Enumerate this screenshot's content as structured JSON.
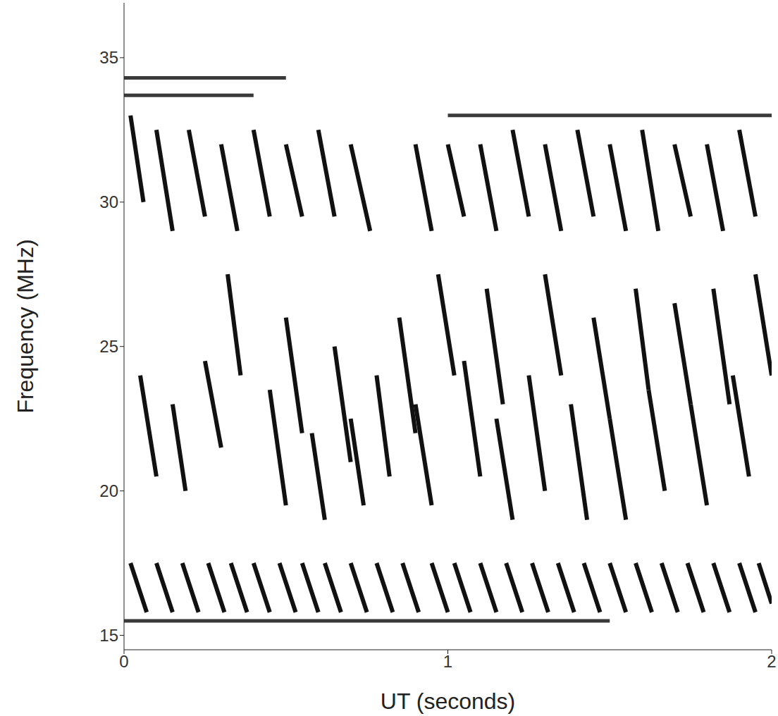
{
  "chart_data": {
    "type": "spectrogram",
    "x_label": "UT (seconds)",
    "y_label": "Frequency (MHz)",
    "xlim": [
      0,
      2
    ],
    "xticks": [
      0,
      1,
      2
    ],
    "ylim": [
      14.5,
      36.9
    ],
    "yticks": [
      15,
      20,
      25,
      30,
      35
    ],
    "grid": false,
    "color": "#111111",
    "interference_color": "#3a3a3a",
    "bursts": [
      {
        "x": [
          0.02,
          0.07
        ],
        "y": [
          17.5,
          15.8
        ]
      },
      {
        "x": [
          0.1,
          0.15
        ],
        "y": [
          17.5,
          15.8
        ]
      },
      {
        "x": [
          0.18,
          0.23
        ],
        "y": [
          17.5,
          15.8
        ]
      },
      {
        "x": [
          0.26,
          0.31
        ],
        "y": [
          17.5,
          15.8
        ]
      },
      {
        "x": [
          0.33,
          0.38
        ],
        "y": [
          17.5,
          15.8
        ]
      },
      {
        "x": [
          0.4,
          0.45
        ],
        "y": [
          17.5,
          15.8
        ]
      },
      {
        "x": [
          0.48,
          0.53
        ],
        "y": [
          17.5,
          15.8
        ]
      },
      {
        "x": [
          0.55,
          0.6
        ],
        "y": [
          17.5,
          15.8
        ]
      },
      {
        "x": [
          0.62,
          0.67
        ],
        "y": [
          17.5,
          15.8
        ]
      },
      {
        "x": [
          0.7,
          0.75
        ],
        "y": [
          17.5,
          15.8
        ]
      },
      {
        "x": [
          0.78,
          0.83
        ],
        "y": [
          17.5,
          15.8
        ]
      },
      {
        "x": [
          0.86,
          0.91
        ],
        "y": [
          17.5,
          15.8
        ]
      },
      {
        "x": [
          0.95,
          1.0
        ],
        "y": [
          17.5,
          15.8
        ]
      },
      {
        "x": [
          1.02,
          1.07
        ],
        "y": [
          17.5,
          15.8
        ]
      },
      {
        "x": [
          1.1,
          1.15
        ],
        "y": [
          17.5,
          15.8
        ]
      },
      {
        "x": [
          1.18,
          1.23
        ],
        "y": [
          17.5,
          15.8
        ]
      },
      {
        "x": [
          1.26,
          1.31
        ],
        "y": [
          17.5,
          15.8
        ]
      },
      {
        "x": [
          1.34,
          1.39
        ],
        "y": [
          17.5,
          15.8
        ]
      },
      {
        "x": [
          1.42,
          1.47
        ],
        "y": [
          17.5,
          15.8
        ]
      },
      {
        "x": [
          1.5,
          1.55
        ],
        "y": [
          17.5,
          15.8
        ]
      },
      {
        "x": [
          1.58,
          1.63
        ],
        "y": [
          17.5,
          15.8
        ]
      },
      {
        "x": [
          1.66,
          1.71
        ],
        "y": [
          17.5,
          15.8
        ]
      },
      {
        "x": [
          1.74,
          1.79
        ],
        "y": [
          17.5,
          15.8
        ]
      },
      {
        "x": [
          1.82,
          1.87
        ],
        "y": [
          17.5,
          15.8
        ]
      },
      {
        "x": [
          1.9,
          1.95
        ],
        "y": [
          17.5,
          15.8
        ]
      },
      {
        "x": [
          1.96,
          2.0
        ],
        "y": [
          17.5,
          16.1
        ]
      },
      {
        "x": [
          0.05,
          0.1
        ],
        "y": [
          24,
          20.5
        ]
      },
      {
        "x": [
          0.15,
          0.19
        ],
        "y": [
          23,
          20
        ]
      },
      {
        "x": [
          0.25,
          0.3
        ],
        "y": [
          24.5,
          21.5
        ]
      },
      {
        "x": [
          0.32,
          0.36
        ],
        "y": [
          27.5,
          24
        ]
      },
      {
        "x": [
          0.45,
          0.5
        ],
        "y": [
          23.5,
          19.5
        ]
      },
      {
        "x": [
          0.5,
          0.55
        ],
        "y": [
          26,
          22
        ]
      },
      {
        "x": [
          0.58,
          0.62
        ],
        "y": [
          22,
          19
        ]
      },
      {
        "x": [
          0.65,
          0.7
        ],
        "y": [
          25,
          21
        ]
      },
      {
        "x": [
          0.7,
          0.74
        ],
        "y": [
          22.5,
          19.5
        ]
      },
      {
        "x": [
          0.78,
          0.82
        ],
        "y": [
          24,
          20.5
        ]
      },
      {
        "x": [
          0.85,
          0.9
        ],
        "y": [
          26,
          22
        ]
      },
      {
        "x": [
          0.9,
          0.95
        ],
        "y": [
          23,
          19.5
        ]
      },
      {
        "x": [
          0.97,
          1.02
        ],
        "y": [
          27.5,
          24
        ]
      },
      {
        "x": [
          1.05,
          1.1
        ],
        "y": [
          24.5,
          20.5
        ]
      },
      {
        "x": [
          1.12,
          1.17
        ],
        "y": [
          27,
          23
        ]
      },
      {
        "x": [
          1.15,
          1.2
        ],
        "y": [
          22.5,
          19
        ]
      },
      {
        "x": [
          1.25,
          1.3
        ],
        "y": [
          24,
          20
        ]
      },
      {
        "x": [
          1.3,
          1.35
        ],
        "y": [
          27.5,
          24
        ]
      },
      {
        "x": [
          1.38,
          1.43
        ],
        "y": [
          23,
          19
        ]
      },
      {
        "x": [
          1.45,
          1.5
        ],
        "y": [
          26,
          22.5
        ]
      },
      {
        "x": [
          1.5,
          1.55
        ],
        "y": [
          22.5,
          19
        ]
      },
      {
        "x": [
          1.58,
          1.62
        ],
        "y": [
          27,
          23.5
        ]
      },
      {
        "x": [
          1.62,
          1.67
        ],
        "y": [
          23.5,
          20
        ]
      },
      {
        "x": [
          1.7,
          1.75
        ],
        "y": [
          26.5,
          23
        ]
      },
      {
        "x": [
          1.75,
          1.8
        ],
        "y": [
          23,
          19.5
        ]
      },
      {
        "x": [
          1.82,
          1.87
        ],
        "y": [
          27,
          23
        ]
      },
      {
        "x": [
          1.88,
          1.93
        ],
        "y": [
          24,
          20.5
        ]
      },
      {
        "x": [
          1.95,
          2.0
        ],
        "y": [
          27.5,
          24
        ]
      },
      {
        "x": [
          0.02,
          0.06
        ],
        "y": [
          33,
          30
        ]
      },
      {
        "x": [
          0.1,
          0.15
        ],
        "y": [
          32.5,
          29
        ]
      },
      {
        "x": [
          0.2,
          0.25
        ],
        "y": [
          32.5,
          29.5
        ]
      },
      {
        "x": [
          0.3,
          0.35
        ],
        "y": [
          32,
          29
        ]
      },
      {
        "x": [
          0.4,
          0.45
        ],
        "y": [
          32.5,
          29.5
        ]
      },
      {
        "x": [
          0.5,
          0.55
        ],
        "y": [
          32,
          29.5
        ]
      },
      {
        "x": [
          0.6,
          0.65
        ],
        "y": [
          32.5,
          29.5
        ]
      },
      {
        "x": [
          0.7,
          0.76
        ],
        "y": [
          32,
          29
        ]
      },
      {
        "x": [
          0.9,
          0.95
        ],
        "y": [
          32,
          29
        ]
      },
      {
        "x": [
          1.0,
          1.05
        ],
        "y": [
          32,
          29.5
        ]
      },
      {
        "x": [
          1.1,
          1.15
        ],
        "y": [
          32,
          29
        ]
      },
      {
        "x": [
          1.2,
          1.25
        ],
        "y": [
          32.5,
          29.5
        ]
      },
      {
        "x": [
          1.3,
          1.35
        ],
        "y": [
          32,
          29
        ]
      },
      {
        "x": [
          1.4,
          1.45
        ],
        "y": [
          32.5,
          29.5
        ]
      },
      {
        "x": [
          1.5,
          1.55
        ],
        "y": [
          32,
          29
        ]
      },
      {
        "x": [
          1.6,
          1.65
        ],
        "y": [
          32.5,
          29
        ]
      },
      {
        "x": [
          1.7,
          1.75
        ],
        "y": [
          32,
          29.5
        ]
      },
      {
        "x": [
          1.8,
          1.85
        ],
        "y": [
          32,
          29
        ]
      },
      {
        "x": [
          1.9,
          1.95
        ],
        "y": [
          32.5,
          29.5
        ]
      }
    ],
    "interference": [
      {
        "x": [
          0,
          0.4
        ],
        "y": [
          33.7,
          33.7
        ]
      },
      {
        "x": [
          0,
          0.5
        ],
        "y": [
          34.3,
          34.3
        ]
      },
      {
        "x": [
          1.0,
          2.0
        ],
        "y": [
          33,
          33
        ]
      },
      {
        "x": [
          0,
          1.5
        ],
        "y": [
          15.5,
          15.5
        ]
      }
    ]
  }
}
